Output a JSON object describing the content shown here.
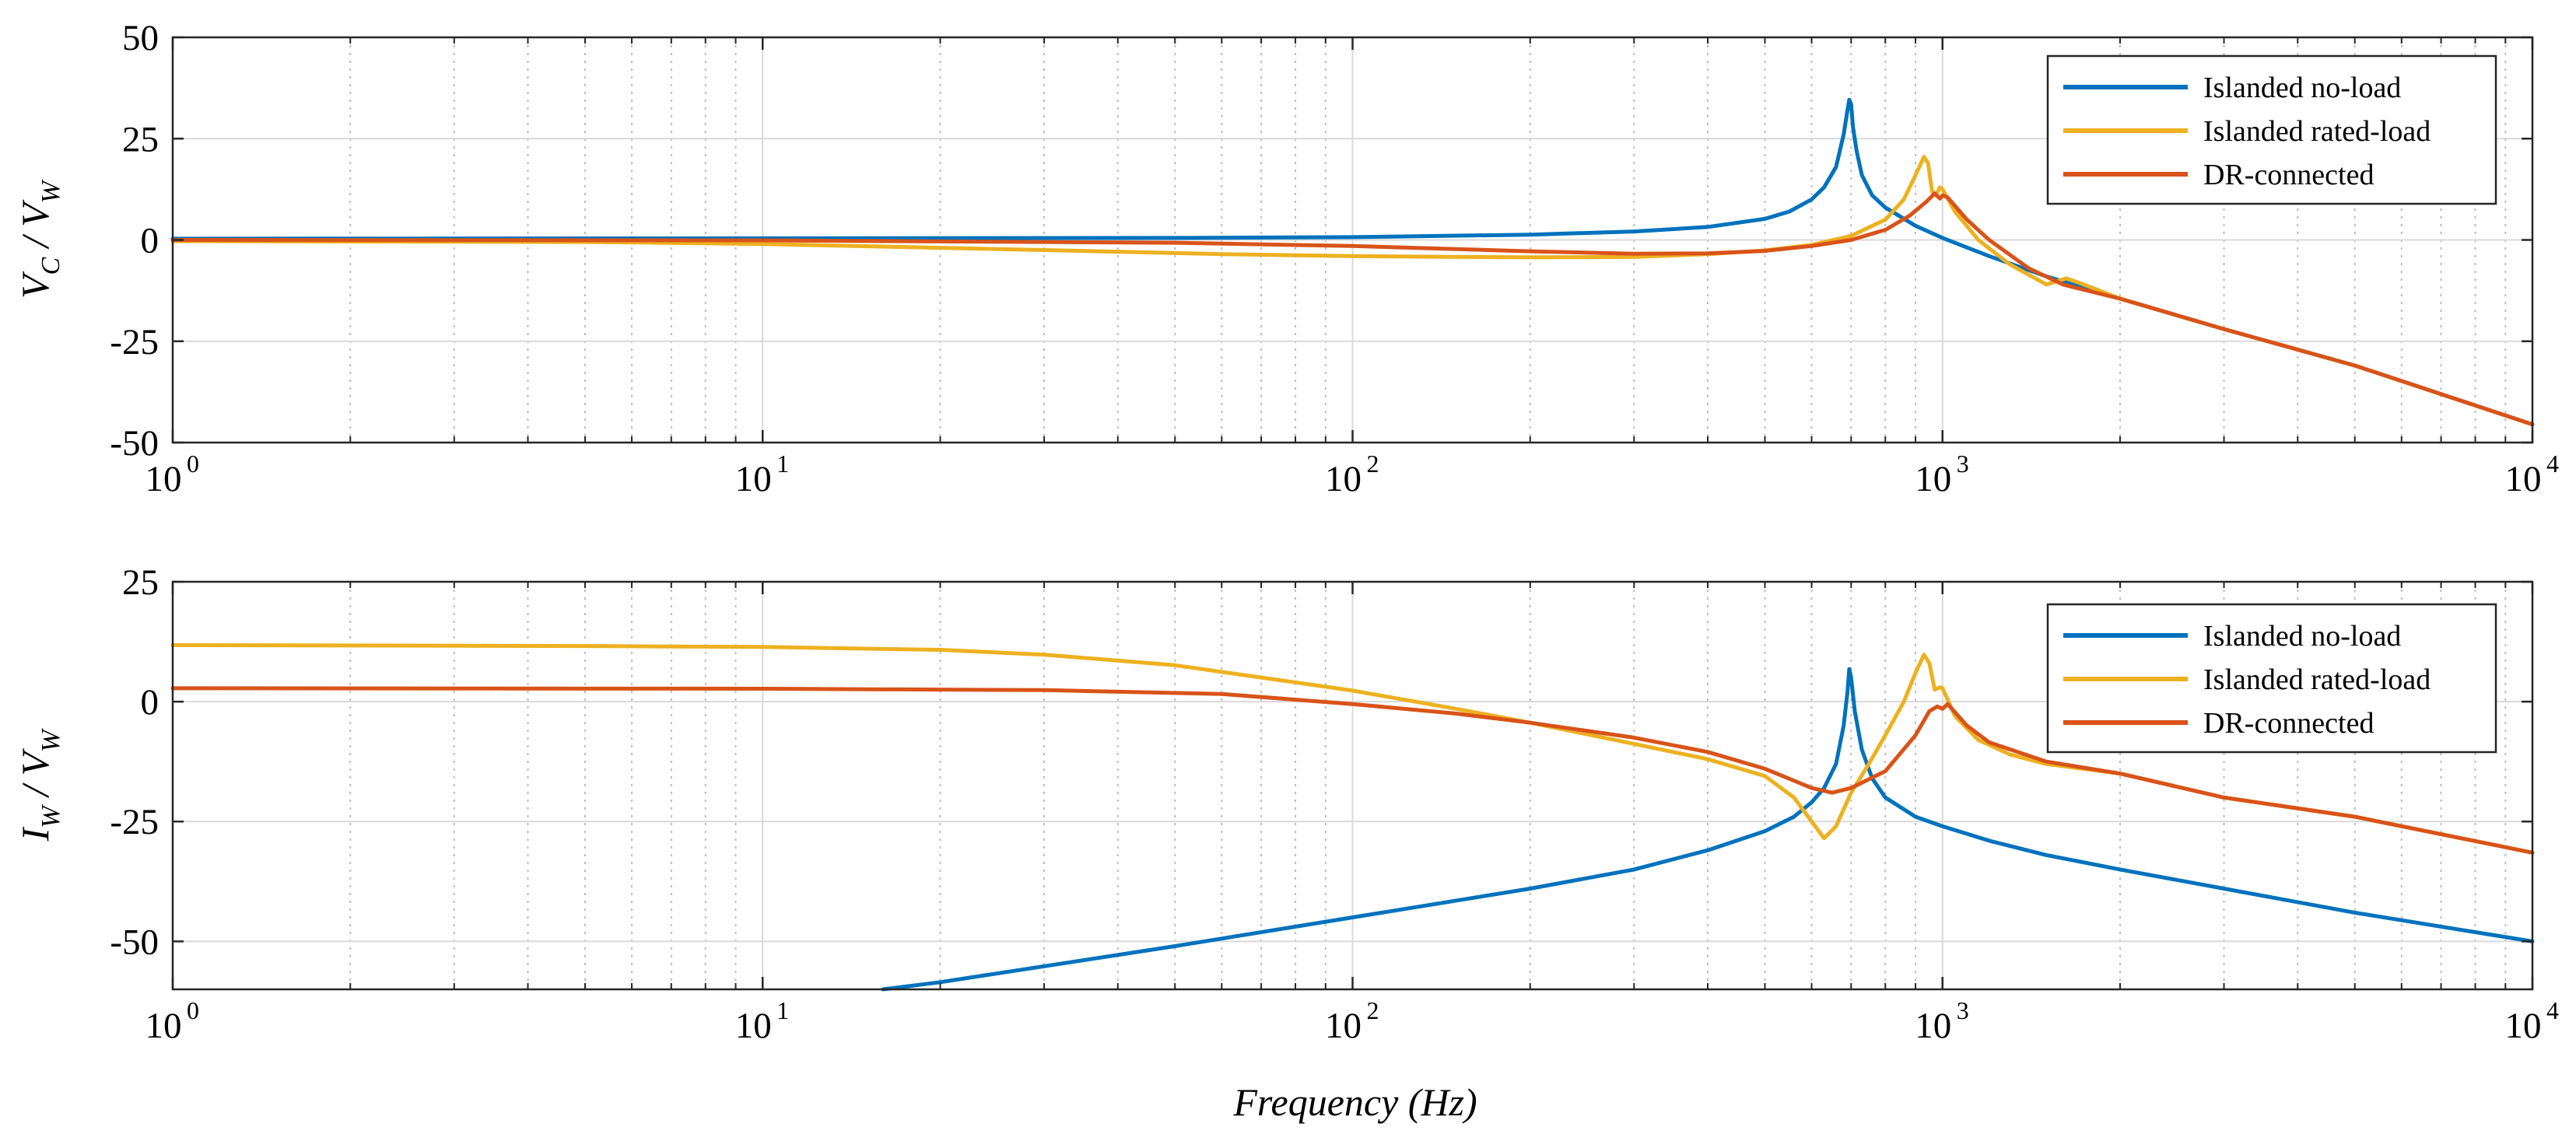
{
  "chart_data": [
    {
      "type": "line",
      "x_scale": "log",
      "xlim": [
        1,
        10000
      ],
      "ylim": [
        -50,
        50
      ],
      "yticks": [
        50,
        25,
        0,
        -25,
        -50
      ],
      "ytick_labels": [
        "50",
        "25",
        "0",
        "-25",
        "-50"
      ],
      "xtick_bases": [
        "10",
        "10",
        "10",
        "10",
        "10"
      ],
      "xtick_exps": [
        "0",
        "1",
        "2",
        "3",
        "4"
      ],
      "ylabel": {
        "main": "V",
        "sub": "C",
        "slash": " / ",
        "main2": "V",
        "sub2": "W"
      },
      "xlabel": "",
      "legend_position": "top-right",
      "series": [
        {
          "name": "Islanded no-load",
          "color": "#0072BD",
          "points": [
            [
              1,
              0.3
            ],
            [
              10,
              0.4
            ],
            [
              50,
              0.5
            ],
            [
              100,
              0.7
            ],
            [
              200,
              1.3
            ],
            [
              300,
              2.1
            ],
            [
              400,
              3.2
            ],
            [
              500,
              5.2
            ],
            [
              550,
              7
            ],
            [
              600,
              10
            ],
            [
              630,
              13
            ],
            [
              660,
              18
            ],
            [
              680,
              26
            ],
            [
              690,
              32
            ],
            [
              695,
              34.6
            ],
            [
              700,
              33.5
            ],
            [
              705,
              28
            ],
            [
              715,
              22
            ],
            [
              730,
              16
            ],
            [
              760,
              11
            ],
            [
              800,
              8
            ],
            [
              900,
              3.5
            ],
            [
              1000,
              0.5
            ],
            [
              1200,
              -4
            ],
            [
              1500,
              -9
            ],
            [
              2000,
              -14.5
            ],
            [
              3000,
              -22
            ],
            [
              5000,
              -31
            ],
            [
              10000,
              -45.5
            ]
          ]
        },
        {
          "name": "Islanded rated-load",
          "color": "#EDB120",
          "points": [
            [
              1,
              -0.3
            ],
            [
              5,
              -0.5
            ],
            [
              10,
              -1
            ],
            [
              30,
              -2.5
            ],
            [
              60,
              -3.5
            ],
            [
              100,
              -4
            ],
            [
              200,
              -4.3
            ],
            [
              300,
              -4.2
            ],
            [
              400,
              -3.5
            ],
            [
              500,
              -2.6
            ],
            [
              600,
              -1.2
            ],
            [
              700,
              1
            ],
            [
              800,
              5
            ],
            [
              860,
              10
            ],
            [
              900,
              16
            ],
            [
              930,
              20.5
            ],
            [
              945,
              19
            ],
            [
              960,
              12
            ],
            [
              975,
              11
            ],
            [
              990,
              13
            ],
            [
              1000,
              12.5
            ],
            [
              1050,
              7
            ],
            [
              1150,
              0
            ],
            [
              1300,
              -6
            ],
            [
              1500,
              -11
            ],
            [
              1620,
              -9.5
            ],
            [
              1700,
              -10.5
            ],
            [
              2000,
              -14.5
            ],
            [
              3000,
              -22
            ],
            [
              5000,
              -31
            ],
            [
              10000,
              -45.5
            ]
          ]
        },
        {
          "name": "DR-connected",
          "color": "#D95319",
          "points": [
            [
              1,
              0
            ],
            [
              10,
              -0.1
            ],
            [
              50,
              -0.7
            ],
            [
              100,
              -1.5
            ],
            [
              200,
              -2.8
            ],
            [
              300,
              -3.4
            ],
            [
              400,
              -3.3
            ],
            [
              500,
              -2.7
            ],
            [
              600,
              -1.5
            ],
            [
              700,
              0
            ],
            [
              800,
              2.5
            ],
            [
              880,
              6
            ],
            [
              940,
              9.5
            ],
            [
              970,
              11.5
            ],
            [
              990,
              10.2
            ],
            [
              1000,
              11
            ],
            [
              1020,
              10.5
            ],
            [
              1100,
              5
            ],
            [
              1200,
              0
            ],
            [
              1400,
              -7
            ],
            [
              1600,
              -11
            ],
            [
              2000,
              -14.5
            ],
            [
              3000,
              -22
            ],
            [
              5000,
              -31
            ],
            [
              10000,
              -45.5
            ]
          ]
        }
      ]
    },
    {
      "type": "line",
      "x_scale": "log",
      "xlim": [
        1,
        10000
      ],
      "ylim": [
        -60,
        25
      ],
      "yticks": [
        25,
        0,
        -25,
        -50
      ],
      "ytick_labels": [
        "25",
        "0",
        "-25",
        "-50"
      ],
      "xtick_bases": [
        "10",
        "10",
        "10",
        "10",
        "10"
      ],
      "xtick_exps": [
        "0",
        "1",
        "2",
        "3",
        "4"
      ],
      "ylabel": {
        "main": "I",
        "sub": "W",
        "slash": " / ",
        "main2": "V",
        "sub2": "W"
      },
      "xlabel": "Frequency (Hz)",
      "legend_position": "top-right",
      "series": [
        {
          "name": "Islanded no-load",
          "color": "#0072BD",
          "points": [
            [
              16,
              -60
            ],
            [
              20,
              -58.5
            ],
            [
              50,
              -51
            ],
            [
              100,
              -45
            ],
            [
              200,
              -39
            ],
            [
              300,
              -35
            ],
            [
              400,
              -31
            ],
            [
              500,
              -27
            ],
            [
              560,
              -24
            ],
            [
              600,
              -21
            ],
            [
              630,
              -18
            ],
            [
              660,
              -13
            ],
            [
              680,
              -5
            ],
            [
              690,
              2
            ],
            [
              695,
              6.8
            ],
            [
              700,
              5
            ],
            [
              710,
              -2
            ],
            [
              730,
              -10
            ],
            [
              760,
              -16
            ],
            [
              800,
              -20
            ],
            [
              900,
              -24
            ],
            [
              1000,
              -26
            ],
            [
              1200,
              -29
            ],
            [
              1500,
              -32
            ],
            [
              2000,
              -35
            ],
            [
              3000,
              -39
            ],
            [
              5000,
              -44
            ],
            [
              10000,
              -50
            ]
          ]
        },
        {
          "name": "Islanded rated-load",
          "color": "#EDB120",
          "points": [
            [
              1,
              11.8
            ],
            [
              5,
              11.6
            ],
            [
              10,
              11.4
            ],
            [
              20,
              10.8
            ],
            [
              30,
              9.8
            ],
            [
              50,
              7.6
            ],
            [
              100,
              2.3
            ],
            [
              150,
              -1.5
            ],
            [
              200,
              -4.4
            ],
            [
              300,
              -8.8
            ],
            [
              400,
              -12
            ],
            [
              500,
              -15.5
            ],
            [
              560,
              -20
            ],
            [
              600,
              -25
            ],
            [
              630,
              -28.5
            ],
            [
              660,
              -26
            ],
            [
              700,
              -19
            ],
            [
              750,
              -13
            ],
            [
              800,
              -7
            ],
            [
              860,
              0
            ],
            [
              900,
              6
            ],
            [
              930,
              9.8
            ],
            [
              950,
              8
            ],
            [
              970,
              2.5
            ],
            [
              990,
              3
            ],
            [
              1000,
              2.8
            ],
            [
              1050,
              -3
            ],
            [
              1150,
              -8
            ],
            [
              1300,
              -11
            ],
            [
              1500,
              -13
            ],
            [
              2000,
              -15
            ],
            [
              3000,
              -20
            ],
            [
              5000,
              -24
            ],
            [
              10000,
              -31.5
            ]
          ]
        },
        {
          "name": "DR-connected",
          "color": "#D95319",
          "points": [
            [
              1,
              2.8
            ],
            [
              10,
              2.7
            ],
            [
              30,
              2.4
            ],
            [
              60,
              1.6
            ],
            [
              100,
              -0.5
            ],
            [
              150,
              -2.5
            ],
            [
              200,
              -4.4
            ],
            [
              300,
              -7.5
            ],
            [
              400,
              -10.5
            ],
            [
              500,
              -14
            ],
            [
              600,
              -18
            ],
            [
              650,
              -19
            ],
            [
              700,
              -18
            ],
            [
              800,
              -14.5
            ],
            [
              900,
              -7
            ],
            [
              950,
              -2
            ],
            [
              980,
              -1
            ],
            [
              1000,
              -1.5
            ],
            [
              1020,
              -0.5
            ],
            [
              1100,
              -5
            ],
            [
              1200,
              -8.5
            ],
            [
              1500,
              -12.5
            ],
            [
              2000,
              -15
            ],
            [
              3000,
              -20
            ],
            [
              5000,
              -24
            ],
            [
              10000,
              -31.5
            ]
          ]
        }
      ]
    }
  ]
}
